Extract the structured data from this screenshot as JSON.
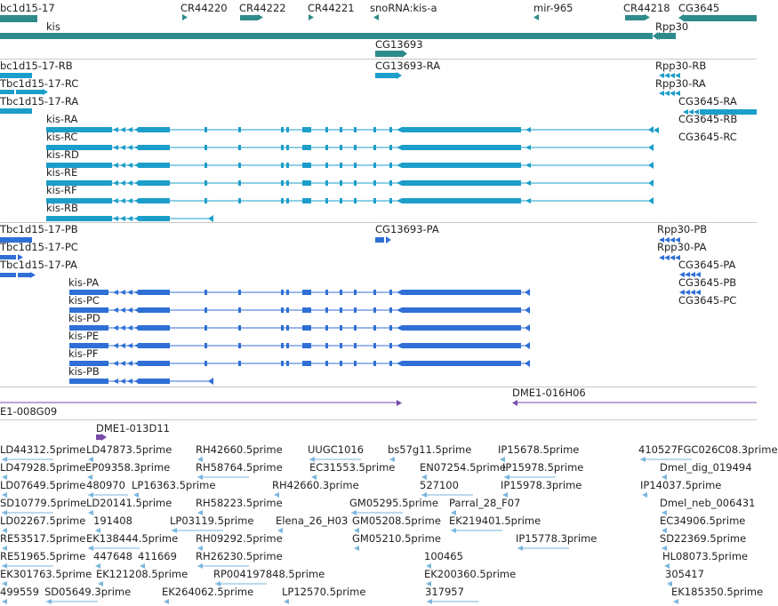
{
  "colors": {
    "gene": "#2e8b8b",
    "transcript": "#1b9ec9",
    "protein": "#2f6fd6",
    "clone": "#7a4aa8",
    "est": "#7ab6de",
    "separator": "#c8c8c8"
  },
  "tracks": {
    "genes": {
      "items": [
        {
          "name": "bc1d15-17",
          "dir": "none"
        },
        {
          "name": "CR44220",
          "dir": "right"
        },
        {
          "name": "CR44222",
          "dir": "right"
        },
        {
          "name": "CR44221",
          "dir": "right"
        },
        {
          "name": "snoRNA:kis-a",
          "dir": "left"
        },
        {
          "name": "mir-965",
          "dir": "left"
        },
        {
          "name": "CR44218",
          "dir": "right"
        },
        {
          "name": "CG3645",
          "dir": "left"
        },
        {
          "name": "kis",
          "dir": "left"
        },
        {
          "name": "Rpp30",
          "dir": "left"
        },
        {
          "name": "CG13693",
          "dir": "right"
        }
      ]
    },
    "transcripts": {
      "items": [
        {
          "name": "bc1d15-17-RB"
        },
        {
          "name": "Tbc1d15-17-RC"
        },
        {
          "name": "Tbc1d15-17-RA"
        },
        {
          "name": "CG13693-RA"
        },
        {
          "name": "Rpp30-RB"
        },
        {
          "name": "Rpp30-RA"
        },
        {
          "name": "CG3645-RA"
        },
        {
          "name": "CG3645-RB"
        },
        {
          "name": "CG3645-RC"
        },
        {
          "name": "kis-RA"
        },
        {
          "name": "kis-RC"
        },
        {
          "name": "kis-RD"
        },
        {
          "name": "kis-RE"
        },
        {
          "name": "kis-RF"
        },
        {
          "name": "kis-RB"
        }
      ]
    },
    "proteins": {
      "items": [
        {
          "name": "Tbc1d15-17-PB"
        },
        {
          "name": "Tbc1d15-17-PC"
        },
        {
          "name": "Tbc1d15-17-PA"
        },
        {
          "name": "CG13693-PA"
        },
        {
          "name": "Rpp30-PB"
        },
        {
          "name": "Rpp30-PA"
        },
        {
          "name": "CG3645-PA"
        },
        {
          "name": "CG3645-PB"
        },
        {
          "name": "CG3645-PC"
        },
        {
          "name": "kis-PA"
        },
        {
          "name": "kis-PC"
        },
        {
          "name": "kis-PD"
        },
        {
          "name": "kis-PE"
        },
        {
          "name": "kis-PF"
        },
        {
          "name": "kis-PB"
        }
      ]
    },
    "clones": {
      "items": [
        {
          "name": "DME1-016H06",
          "dir": "left"
        },
        {
          "name": "E1-008G09",
          "dir": "right"
        },
        {
          "name": "DME1-013D11",
          "dir": "right"
        }
      ]
    },
    "ests": {
      "items": [
        {
          "name": "LD44312.5prime"
        },
        {
          "name": "LD47873.5prime"
        },
        {
          "name": "RH42660.5prime"
        },
        {
          "name": "UUGC1016"
        },
        {
          "name": "bs57g11.5prime"
        },
        {
          "name": "IP15678.5prime"
        },
        {
          "name": "410527FGC026C08.3prime"
        },
        {
          "name": "LD47928.5prime"
        },
        {
          "name": "EP09358.3prime"
        },
        {
          "name": "RH58764.5prime"
        },
        {
          "name": "EC31553.5prime"
        },
        {
          "name": "EN07254.5prime"
        },
        {
          "name": "IP15978.5prime"
        },
        {
          "name": "Dmel_dig_019494"
        },
        {
          "name": "LD07649.5prime"
        },
        {
          "name": "480970"
        },
        {
          "name": "LP16363.5prime"
        },
        {
          "name": "RH42660.3prime"
        },
        {
          "name": "527100"
        },
        {
          "name": "IP15978.3prime"
        },
        {
          "name": "IP14037.5prime"
        },
        {
          "name": "SD10779.5prime"
        },
        {
          "name": "LD20141.5prime"
        },
        {
          "name": "RH58223.5prime"
        },
        {
          "name": "GM05295.5prime"
        },
        {
          "name": "Parral_28_F07"
        },
        {
          "name": "Dmel_neb_006431"
        },
        {
          "name": "LD02267.5prime"
        },
        {
          "name": "191408"
        },
        {
          "name": "LP03119.5prime"
        },
        {
          "name": "Elena_26_H03"
        },
        {
          "name": "GM05208.5prime"
        },
        {
          "name": "EK219401.5prime"
        },
        {
          "name": "EC34906.5prime"
        },
        {
          "name": "RE53517.5prime"
        },
        {
          "name": "EK138444.5prime"
        },
        {
          "name": "RH09292.5prime"
        },
        {
          "name": "GM05210.5prime"
        },
        {
          "name": "IP15778.3prime"
        },
        {
          "name": "SD22369.5prime"
        },
        {
          "name": "RE51965.5prime"
        },
        {
          "name": "447648"
        },
        {
          "name": "411669"
        },
        {
          "name": "RH26230.5prime"
        },
        {
          "name": "100465"
        },
        {
          "name": "HL08073.5prime"
        },
        {
          "name": "EK301763.5prime"
        },
        {
          "name": "EK121208.5prime"
        },
        {
          "name": "RP004197848.5prime"
        },
        {
          "name": "EK200360.5prime"
        },
        {
          "name": "305417"
        },
        {
          "name": "499559"
        },
        {
          "name": "SD05649.3prime"
        },
        {
          "name": "EK264062.5prime"
        },
        {
          "name": "LP12570.5prime"
        },
        {
          "name": "317957"
        },
        {
          "name": "EK185350.5prime"
        }
      ]
    }
  }
}
